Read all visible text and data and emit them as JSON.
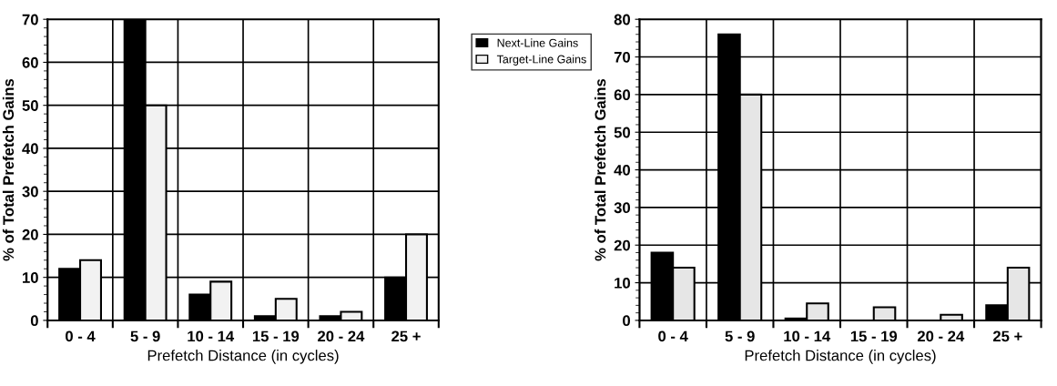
{
  "chart_data": [
    {
      "type": "bar",
      "xlabel": "Prefetch Distance (in cycles)",
      "ylabel": "% of Total Prefetch Gains",
      "categories": [
        "0 - 4",
        "5 - 9",
        "10 - 14",
        "15 - 19",
        "20 - 24",
        "25 +"
      ],
      "ylim": [
        0,
        70
      ],
      "yticks": [
        0,
        10,
        20,
        30,
        40,
        50,
        60,
        70
      ],
      "grid": true,
      "legend": "right",
      "series": [
        {
          "name": "Next-Line Gains",
          "color": "#000000",
          "values": [
            12,
            70,
            6,
            1,
            1,
            10
          ]
        },
        {
          "name": "Target-Line Gains",
          "color": "#f2f2f2",
          "values": [
            14,
            50,
            9,
            5,
            2,
            20
          ]
        }
      ]
    },
    {
      "type": "bar",
      "xlabel": "Prefetch Distance (in cycles)",
      "ylabel": "% of Total Prefetch Gains",
      "categories": [
        "0 - 4",
        "5 - 9",
        "10 - 14",
        "15 - 19",
        "20 - 24",
        "25 +"
      ],
      "ylim": [
        0,
        80
      ],
      "yticks": [
        0,
        10,
        20,
        30,
        40,
        50,
        60,
        70,
        80
      ],
      "grid": true,
      "series": [
        {
          "color": "#000000",
          "values": [
            18,
            76,
            0.5,
            0,
            0,
            4
          ]
        },
        {
          "color": "#e6e6e6",
          "values": [
            14,
            60,
            4.5,
            3.5,
            1.5,
            14
          ]
        }
      ]
    }
  ]
}
